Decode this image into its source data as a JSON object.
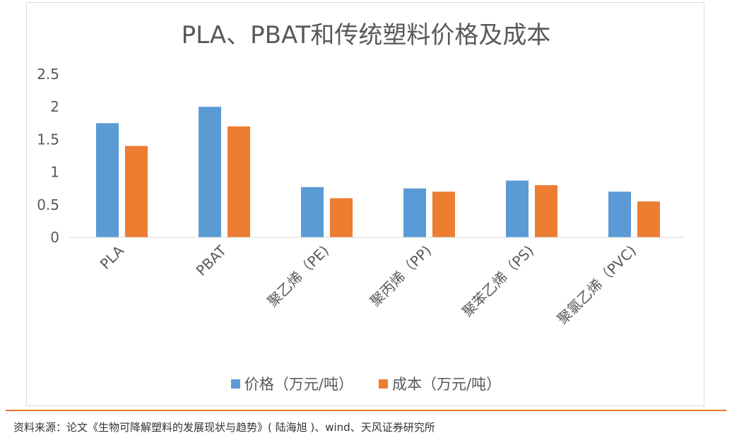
{
  "chart_data": {
    "type": "bar",
    "title": "PLA、PBAT和传统塑料价格及成本",
    "categories": [
      "PLA",
      "PBAT",
      "聚乙烯（PE)",
      "聚丙烯（PP)",
      "聚苯乙烯（PS)",
      "聚氯乙烯（PVC)"
    ],
    "series": [
      {
        "name": "价格（万元/吨）",
        "color": "#5b9bd5",
        "values": [
          1.75,
          2.0,
          0.77,
          0.75,
          0.87,
          0.7
        ]
      },
      {
        "name": "成本（万元/吨）",
        "color": "#ed7d31",
        "values": [
          1.4,
          1.7,
          0.6,
          0.7,
          0.8,
          0.55
        ]
      }
    ],
    "ylim": [
      0,
      2.5
    ],
    "yticks": [
      "0",
      "0.5",
      "1",
      "1.5",
      "2",
      "2.5"
    ],
    "grid": false,
    "legend_position": "bottom"
  },
  "source_note": "资料来源：论文《生物可降解塑料的发展现状与趋势》( 陆海旭 )、wind、天风证券研究所"
}
